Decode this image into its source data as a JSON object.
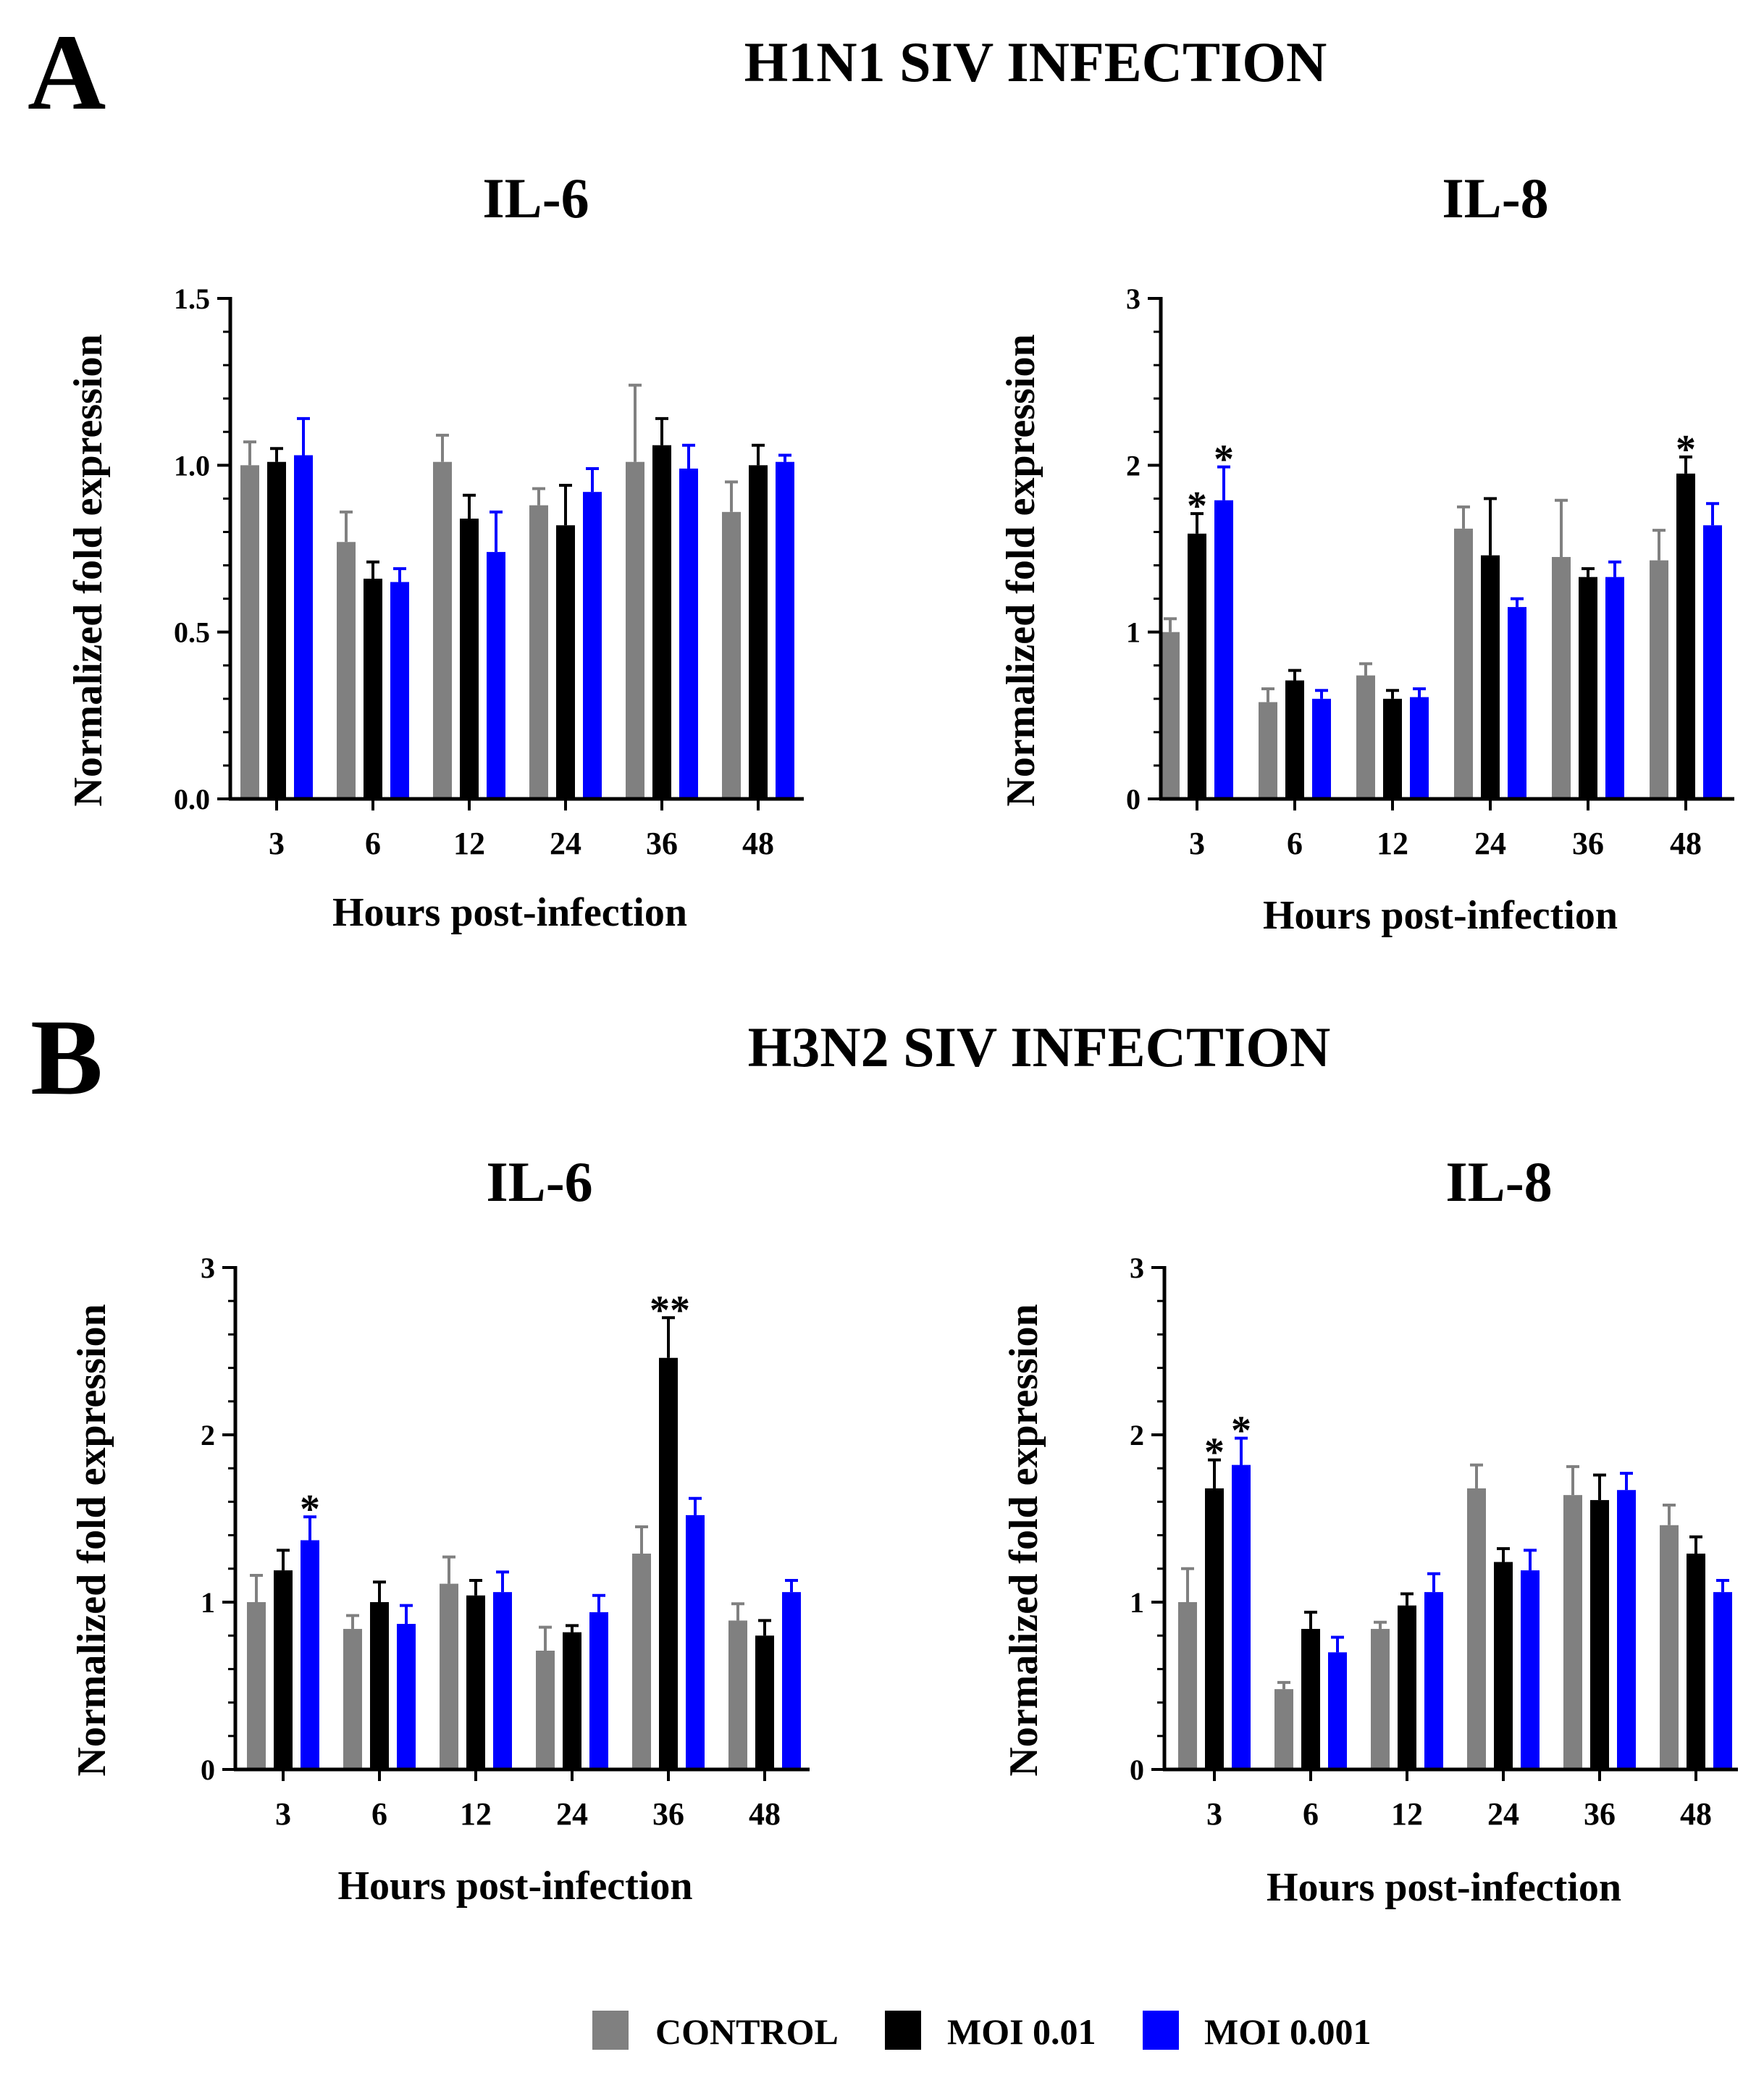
{
  "panels": [
    {
      "letter": "A",
      "title": "H1N1 SIV INFECTION"
    },
    {
      "letter": "B",
      "title": "H3N2 SIV INFECTION"
    }
  ],
  "colors": {
    "CONTROL": "#808080",
    "MOI 0.01": "#000000",
    "MOI 0.001": "#0000ff",
    "axis": "#000000"
  },
  "legend": {
    "items": [
      {
        "label": "CONTROL",
        "color_key": "CONTROL"
      },
      {
        "label": "MOI 0.01",
        "color_key": "MOI 0.01"
      },
      {
        "label": "MOI 0.001",
        "color_key": "MOI 0.001"
      }
    ]
  },
  "chart_data": [
    {
      "type": "bar",
      "panel": "A",
      "title": "IL-6",
      "xlabel": "Hours post-infection",
      "ylabel": "Normalized fold expression",
      "categories": [
        "3",
        "6",
        "12",
        "24",
        "36",
        "48"
      ],
      "ylim": [
        0,
        1.5
      ],
      "yticks": [
        "0.0",
        "0.5",
        "1.0",
        "1.5"
      ],
      "ytick_values": [
        0,
        0.5,
        1.0,
        1.5
      ],
      "series": [
        {
          "name": "CONTROL",
          "values": [
            1.0,
            0.77,
            1.01,
            0.88,
            1.01,
            0.86
          ],
          "errors": [
            0.07,
            0.09,
            0.08,
            0.05,
            0.23,
            0.09
          ]
        },
        {
          "name": "MOI 0.01",
          "values": [
            1.01,
            0.66,
            0.84,
            0.82,
            1.06,
            1.0
          ],
          "errors": [
            0.04,
            0.05,
            0.07,
            0.12,
            0.08,
            0.06
          ]
        },
        {
          "name": "MOI 0.001",
          "values": [
            1.03,
            0.65,
            0.74,
            0.92,
            0.99,
            1.01
          ],
          "errors": [
            0.11,
            0.04,
            0.12,
            0.07,
            0.07,
            0.02
          ]
        }
      ],
      "annotations": []
    },
    {
      "type": "bar",
      "panel": "A",
      "title": "IL-8",
      "xlabel": "Hours post-infection",
      "ylabel": "Normalized fold expression",
      "categories": [
        "3",
        "6",
        "12",
        "24",
        "36",
        "48"
      ],
      "ylim": [
        0,
        3
      ],
      "yticks": [
        "0",
        "1",
        "2",
        "3"
      ],
      "ytick_values": [
        0,
        1,
        2,
        3
      ],
      "series": [
        {
          "name": "CONTROL",
          "values": [
            1.0,
            0.58,
            0.74,
            1.62,
            1.45,
            1.43
          ],
          "errors": [
            0.08,
            0.08,
            0.07,
            0.13,
            0.34,
            0.18
          ]
        },
        {
          "name": "MOI 0.01",
          "values": [
            1.59,
            0.71,
            0.6,
            1.46,
            1.33,
            1.95
          ],
          "errors": [
            0.12,
            0.06,
            0.05,
            0.34,
            0.05,
            0.1
          ]
        },
        {
          "name": "MOI 0.001",
          "values": [
            1.79,
            0.6,
            0.61,
            1.15,
            1.33,
            1.64
          ],
          "errors": [
            0.2,
            0.05,
            0.05,
            0.05,
            0.09,
            0.13
          ]
        }
      ],
      "annotations": [
        {
          "category_index": 0,
          "series_index": 1,
          "text": "*"
        },
        {
          "category_index": 0,
          "series_index": 2,
          "text": "*"
        },
        {
          "category_index": 5,
          "series_index": 1,
          "text": "*"
        }
      ]
    },
    {
      "type": "bar",
      "panel": "B",
      "title": "IL-6",
      "xlabel": "Hours post-infection",
      "ylabel": "Normalized fold expression",
      "categories": [
        "3",
        "6",
        "12",
        "24",
        "36",
        "48"
      ],
      "ylim": [
        0,
        3
      ],
      "yticks": [
        "0",
        "1",
        "2",
        "3"
      ],
      "ytick_values": [
        0,
        1,
        2,
        3
      ],
      "series": [
        {
          "name": "CONTROL",
          "values": [
            1.0,
            0.84,
            1.11,
            0.71,
            1.29,
            0.89
          ],
          "errors": [
            0.16,
            0.08,
            0.16,
            0.14,
            0.16,
            0.1
          ]
        },
        {
          "name": "MOI 0.01",
          "values": [
            1.19,
            1.0,
            1.04,
            0.82,
            2.46,
            0.8
          ],
          "errors": [
            0.12,
            0.12,
            0.09,
            0.04,
            0.24,
            0.09
          ]
        },
        {
          "name": "MOI 0.001",
          "values": [
            1.37,
            0.87,
            1.06,
            0.94,
            1.52,
            1.06
          ],
          "errors": [
            0.14,
            0.11,
            0.12,
            0.1,
            0.1,
            0.07
          ]
        }
      ],
      "annotations": [
        {
          "category_index": 0,
          "series_index": 2,
          "text": "*"
        },
        {
          "category_index": 4,
          "series_index": 1,
          "text": "**"
        }
      ]
    },
    {
      "type": "bar",
      "panel": "B",
      "title": "IL-8",
      "xlabel": "Hours post-infection",
      "ylabel": "Normalized fold expression",
      "categories": [
        "3",
        "6",
        "12",
        "24",
        "36",
        "48"
      ],
      "ylim": [
        0,
        3
      ],
      "yticks": [
        "0",
        "1",
        "2",
        "3"
      ],
      "ytick_values": [
        0,
        1,
        2,
        3
      ],
      "series": [
        {
          "name": "CONTROL",
          "values": [
            1.0,
            0.48,
            0.84,
            1.68,
            1.64,
            1.46
          ],
          "errors": [
            0.2,
            0.04,
            0.04,
            0.14,
            0.17,
            0.12
          ]
        },
        {
          "name": "MOI 0.01",
          "values": [
            1.68,
            0.84,
            0.98,
            1.24,
            1.61,
            1.29
          ],
          "errors": [
            0.17,
            0.1,
            0.07,
            0.08,
            0.15,
            0.1
          ]
        },
        {
          "name": "MOI 0.001",
          "values": [
            1.82,
            0.7,
            1.06,
            1.19,
            1.67,
            1.06
          ],
          "errors": [
            0.16,
            0.09,
            0.11,
            0.12,
            0.1,
            0.07
          ]
        }
      ],
      "annotations": [
        {
          "category_index": 0,
          "series_index": 1,
          "text": "*"
        },
        {
          "category_index": 0,
          "series_index": 2,
          "text": "*"
        }
      ]
    }
  ]
}
